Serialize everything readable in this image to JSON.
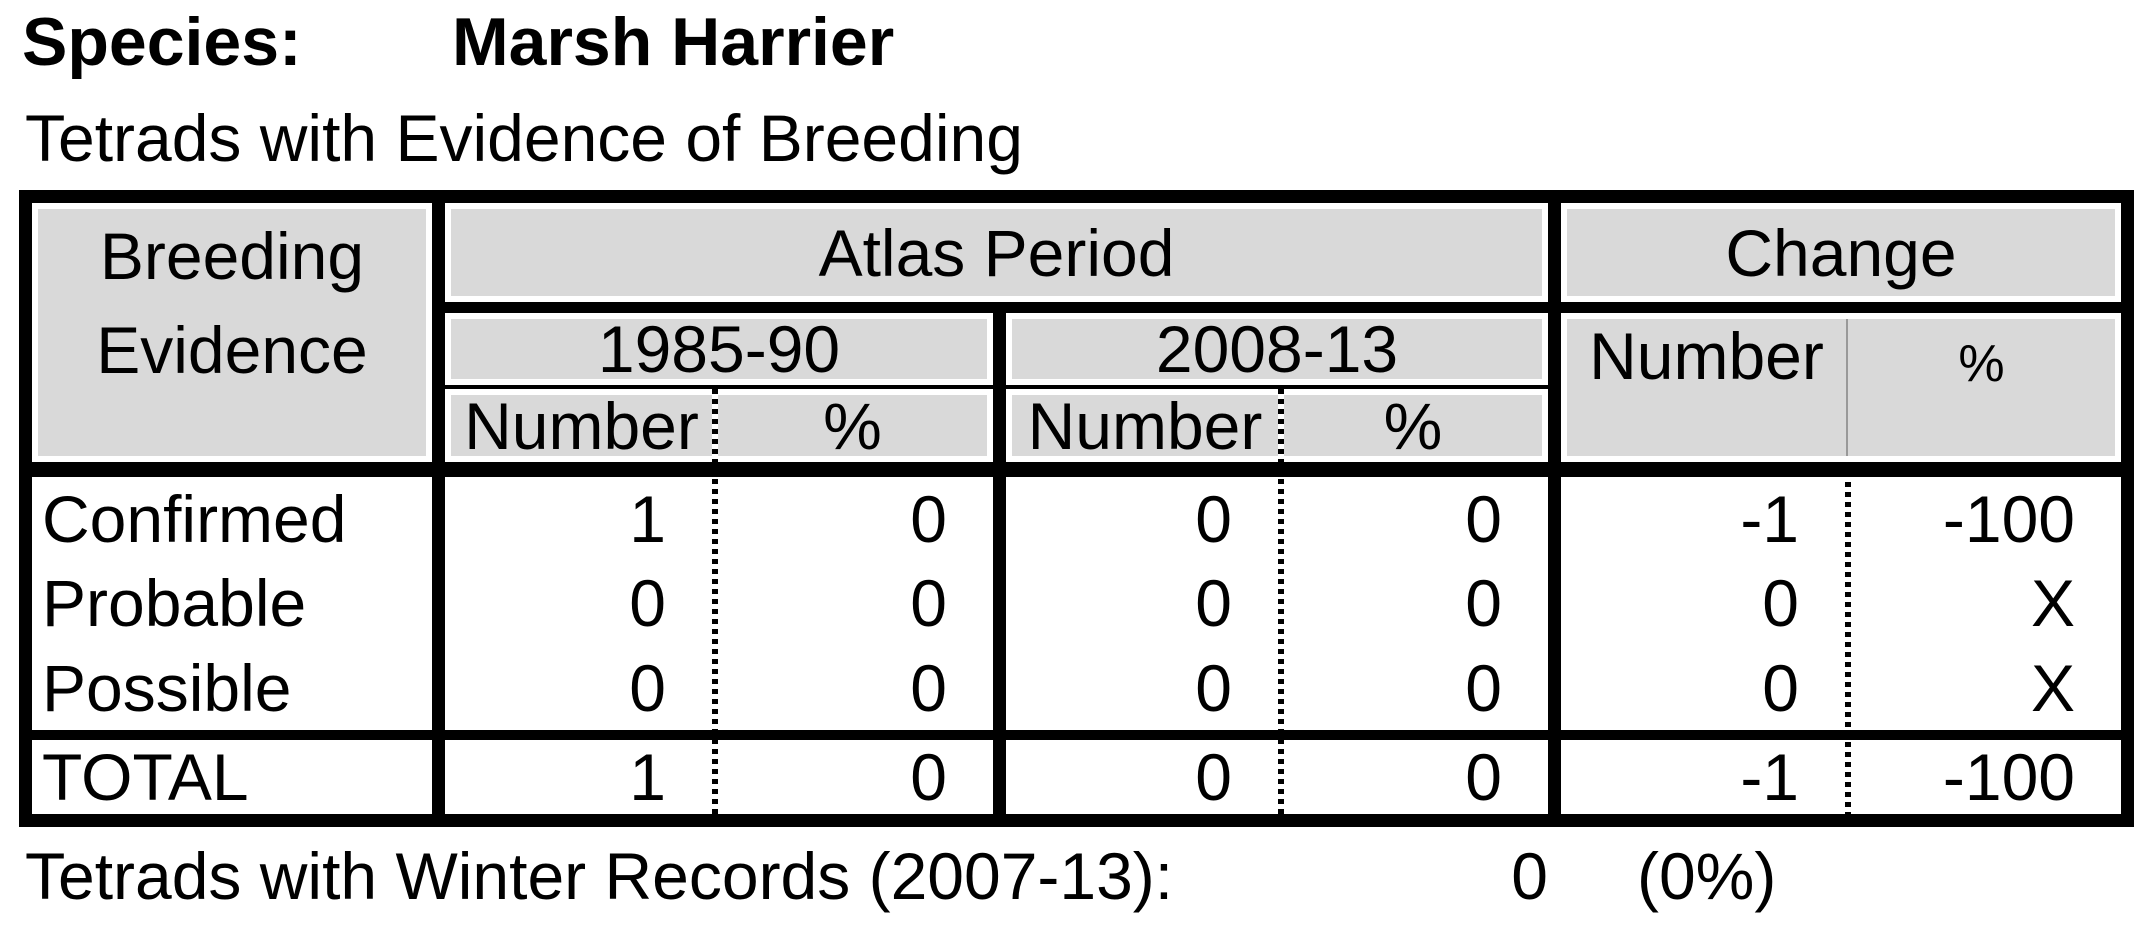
{
  "header": {
    "species_label": "Species:",
    "species_name": "Marsh Harrier",
    "section_title": "Tetrads with Evidence of Breeding"
  },
  "table": {
    "row_header_line1": "Breeding",
    "row_header_line2": "Evidence",
    "atlas_period_label": "Atlas Period",
    "change_label": "Change",
    "period1_label": "1985-90",
    "period2_label": "2008-13",
    "number_label": "Number",
    "percent_label": "%",
    "rows": [
      {
        "label": "Confirmed",
        "values": [
          "1",
          "0",
          "0",
          "0",
          "-1",
          "-100"
        ]
      },
      {
        "label": "Probable",
        "values": [
          "0",
          "0",
          "0",
          "0",
          "0",
          "X"
        ]
      },
      {
        "label": "Possible",
        "values": [
          "0",
          "0",
          "0",
          "0",
          "0",
          "X"
        ]
      }
    ],
    "total": {
      "label": "TOTAL",
      "values": [
        "1",
        "0",
        "0",
        "0",
        "-1",
        "-100"
      ]
    }
  },
  "footer": {
    "label": "Tetrads with Winter Records (2007-13):",
    "count": "0",
    "percent": "(0%)"
  },
  "colors": {
    "header_bg": "#d9d9d9",
    "border": "#000000",
    "change_divider": "#999999",
    "page_bg": "#ffffff"
  }
}
